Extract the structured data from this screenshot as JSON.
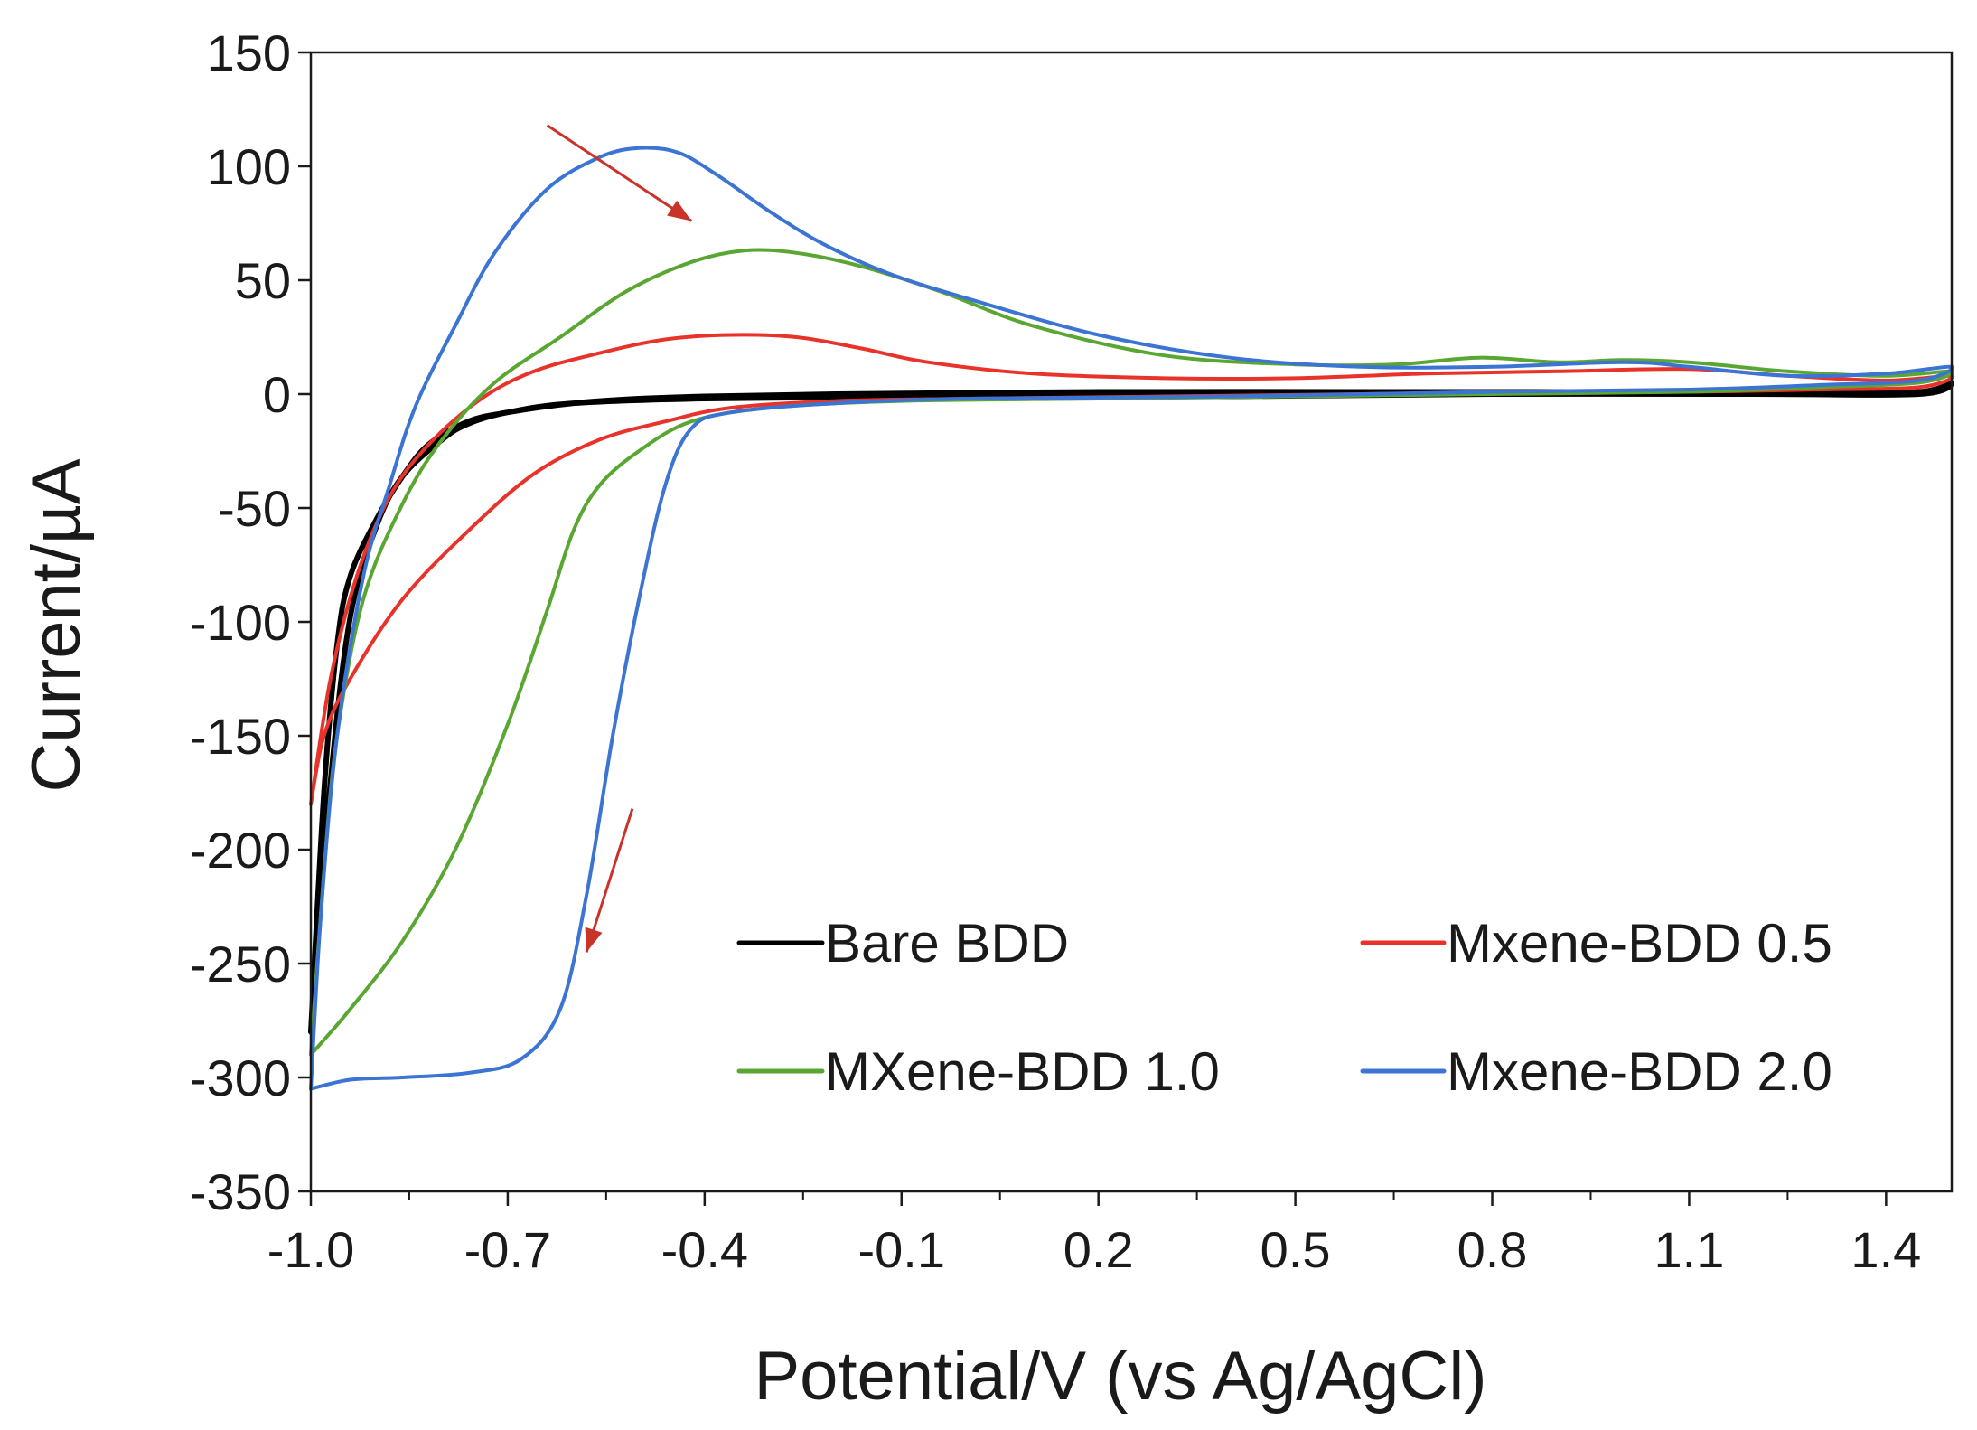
{
  "chart_data": {
    "type": "line",
    "title": "",
    "xlabel": "Potential/V (vs Ag/AgCl)",
    "ylabel": "Current/µA",
    "xlim": [
      -1.0,
      1.5
    ],
    "ylim": [
      -350,
      150
    ],
    "x_ticks": [
      -1.0,
      -0.7,
      -0.4,
      -0.1,
      0.2,
      0.5,
      0.8,
      1.1,
      1.4
    ],
    "x_tick_labels": [
      "-1.0",
      "-0.7",
      "-0.4",
      "-0.1",
      "0.2",
      "0.5",
      "0.8",
      "1.1",
      "1.4"
    ],
    "y_ticks": [
      150,
      100,
      50,
      0,
      -50,
      -100,
      -150,
      -200,
      -250,
      -300,
      -350
    ],
    "y_tick_labels": [
      "150",
      "100",
      "50",
      "0",
      "-50",
      "-100",
      "-150",
      "-200",
      "-250",
      "-300",
      "-350"
    ],
    "grid": false,
    "legend_position": "bottom-right",
    "series": [
      {
        "name": "Bare BDD",
        "color": "#000000",
        "points": [
          [
            -1.0,
            -280
          ],
          [
            -0.98,
            -175
          ],
          [
            -0.96,
            -110
          ],
          [
            -0.94,
            -80
          ],
          [
            -0.9,
            -55
          ],
          [
            -0.86,
            -36
          ],
          [
            -0.82,
            -22
          ],
          [
            -0.76,
            -12
          ],
          [
            -0.7,
            -8
          ],
          [
            -0.6,
            -4
          ],
          [
            -0.5,
            -2
          ],
          [
            -0.4,
            -1
          ],
          [
            -0.2,
            0
          ],
          [
            0.2,
            1
          ],
          [
            0.6,
            1
          ],
          [
            1.0,
            1
          ],
          [
            1.3,
            1
          ],
          [
            1.45,
            1
          ],
          [
            1.5,
            5
          ],
          [
            1.45,
            0
          ],
          [
            1.2,
            0
          ],
          [
            0.8,
            0
          ],
          [
            0.4,
            -1
          ],
          [
            0.0,
            -1
          ],
          [
            -0.4,
            -2
          ],
          [
            -0.6,
            -4
          ],
          [
            -0.7,
            -8
          ],
          [
            -0.76,
            -13
          ],
          [
            -0.8,
            -20
          ],
          [
            -0.86,
            -36
          ],
          [
            -0.9,
            -58
          ],
          [
            -0.94,
            -98
          ],
          [
            -0.97,
            -170
          ],
          [
            -1.0,
            -280
          ]
        ]
      },
      {
        "name": "Mxene-BDD 0.5",
        "color": "#e8322a",
        "points": [
          [
            -1.0,
            -180
          ],
          [
            -0.97,
            -125
          ],
          [
            -0.93,
            -80
          ],
          [
            -0.88,
            -45
          ],
          [
            -0.82,
            -22
          ],
          [
            -0.74,
            -2
          ],
          [
            -0.66,
            10
          ],
          [
            -0.56,
            18
          ],
          [
            -0.46,
            24
          ],
          [
            -0.36,
            26
          ],
          [
            -0.26,
            25
          ],
          [
            -0.16,
            20
          ],
          [
            -0.06,
            14
          ],
          [
            0.1,
            9
          ],
          [
            0.3,
            7
          ],
          [
            0.5,
            7
          ],
          [
            0.7,
            9
          ],
          [
            0.9,
            10
          ],
          [
            1.1,
            11
          ],
          [
            1.25,
            8
          ],
          [
            1.4,
            6
          ],
          [
            1.5,
            8
          ],
          [
            1.45,
            3
          ],
          [
            1.3,
            2
          ],
          [
            1.1,
            1
          ],
          [
            0.9,
            1
          ],
          [
            0.6,
            0
          ],
          [
            0.3,
            -1
          ],
          [
            0.0,
            -2
          ],
          [
            -0.2,
            -3
          ],
          [
            -0.36,
            -6
          ],
          [
            -0.46,
            -12
          ],
          [
            -0.56,
            -20
          ],
          [
            -0.66,
            -35
          ],
          [
            -0.76,
            -60
          ],
          [
            -0.86,
            -90
          ],
          [
            -0.94,
            -125
          ],
          [
            -0.98,
            -150
          ],
          [
            -1.0,
            -180
          ]
        ]
      },
      {
        "name": "MXene-BDD 1.0",
        "color": "#5aa632",
        "points": [
          [
            -1.0,
            -290
          ],
          [
            -0.98,
            -210
          ],
          [
            -0.96,
            -150
          ],
          [
            -0.92,
            -90
          ],
          [
            -0.86,
            -48
          ],
          [
            -0.8,
            -20
          ],
          [
            -0.72,
            5
          ],
          [
            -0.62,
            25
          ],
          [
            -0.52,
            45
          ],
          [
            -0.42,
            58
          ],
          [
            -0.34,
            63
          ],
          [
            -0.26,
            62
          ],
          [
            -0.16,
            56
          ],
          [
            -0.04,
            45
          ],
          [
            0.1,
            30
          ],
          [
            0.3,
            17
          ],
          [
            0.5,
            13
          ],
          [
            0.65,
            13
          ],
          [
            0.78,
            16
          ],
          [
            0.9,
            14
          ],
          [
            1.0,
            15
          ],
          [
            1.1,
            14
          ],
          [
            1.25,
            10
          ],
          [
            1.4,
            8
          ],
          [
            1.5,
            10
          ],
          [
            1.45,
            5
          ],
          [
            1.3,
            3
          ],
          [
            1.1,
            1
          ],
          [
            0.8,
            0
          ],
          [
            0.5,
            -1
          ],
          [
            0.2,
            -2
          ],
          [
            -0.1,
            -3
          ],
          [
            -0.3,
            -6
          ],
          [
            -0.42,
            -12
          ],
          [
            -0.5,
            -25
          ],
          [
            -0.56,
            -40
          ],
          [
            -0.6,
            -60
          ],
          [
            -0.64,
            -95
          ],
          [
            -0.7,
            -145
          ],
          [
            -0.78,
            -200
          ],
          [
            -0.86,
            -240
          ],
          [
            -0.94,
            -270
          ],
          [
            -1.0,
            -290
          ]
        ]
      },
      {
        "name": "Mxene-BDD 2.0",
        "color": "#3b74d3",
        "points": [
          [
            -1.0,
            -305
          ],
          [
            -0.985,
            -230
          ],
          [
            -0.96,
            -150
          ],
          [
            -0.92,
            -80
          ],
          [
            -0.88,
            -40
          ],
          [
            -0.84,
            -5
          ],
          [
            -0.78,
            30
          ],
          [
            -0.72,
            62
          ],
          [
            -0.64,
            90
          ],
          [
            -0.56,
            104
          ],
          [
            -0.5,
            108
          ],
          [
            -0.44,
            106
          ],
          [
            -0.38,
            96
          ],
          [
            -0.3,
            80
          ],
          [
            -0.22,
            66
          ],
          [
            -0.12,
            53
          ],
          [
            0.0,
            42
          ],
          [
            0.2,
            26
          ],
          [
            0.4,
            16
          ],
          [
            0.6,
            12
          ],
          [
            0.8,
            12
          ],
          [
            1.0,
            14
          ],
          [
            1.1,
            12
          ],
          [
            1.25,
            8
          ],
          [
            1.4,
            9
          ],
          [
            1.5,
            12
          ],
          [
            1.45,
            6
          ],
          [
            1.3,
            4
          ],
          [
            1.1,
            2
          ],
          [
            0.8,
            1
          ],
          [
            0.4,
            -1
          ],
          [
            0.0,
            -2
          ],
          [
            -0.2,
            -4
          ],
          [
            -0.36,
            -8
          ],
          [
            -0.42,
            -15
          ],
          [
            -0.46,
            -40
          ],
          [
            -0.5,
            -90
          ],
          [
            -0.54,
            -150
          ],
          [
            -0.58,
            -220
          ],
          [
            -0.62,
            -270
          ],
          [
            -0.68,
            -292
          ],
          [
            -0.76,
            -298
          ],
          [
            -0.86,
            -300
          ],
          [
            -0.94,
            -301
          ],
          [
            -1.0,
            -305
          ]
        ]
      }
    ],
    "annotations": [
      {
        "type": "arrow",
        "color": "#c9332a",
        "from": [
          -0.64,
          118
        ],
        "to": [
          -0.42,
          76
        ]
      },
      {
        "type": "arrow",
        "color": "#c9332a",
        "from": [
          -0.51,
          -182
        ],
        "to": [
          -0.58,
          -245
        ]
      }
    ]
  }
}
